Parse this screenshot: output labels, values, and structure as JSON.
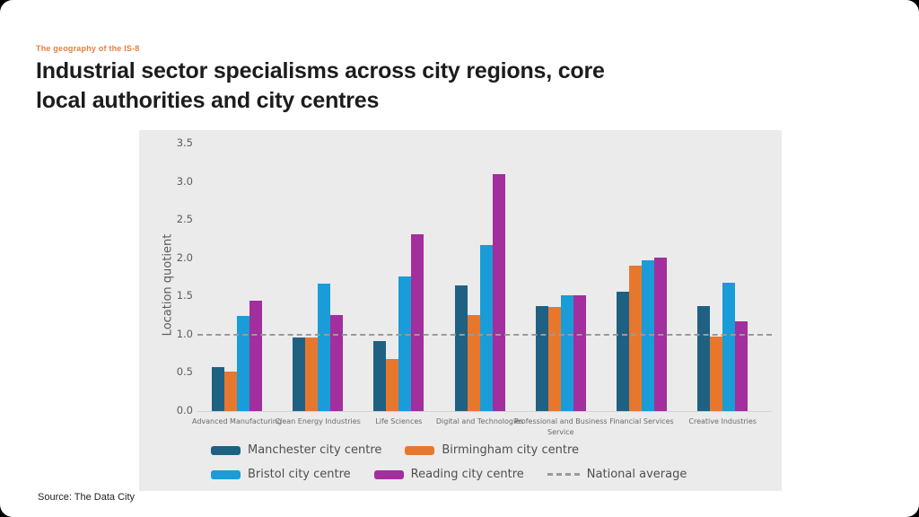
{
  "page": {
    "eyebrow": "The geography of the IS-8",
    "title_line1": "Industrial sector specialisms across city regions, core",
    "title_line2": "local authorities and city centres",
    "source": "Source: The Data City"
  },
  "colors": {
    "page_background": "#000000",
    "card_background": "#ffffff",
    "panel_background": "#ebebeb",
    "eyebrow_orange": "#e77e3c",
    "title_text": "#1c1c1c",
    "axis_text": "#5c5c5c",
    "category_text": "#6b6b6b",
    "legend_text": "#4f4f4f",
    "reference_line": "#9a9a9a",
    "baseline": "#d2d2d2"
  },
  "chart_data": {
    "type": "bar",
    "title": "Industrial sector specialisms across city regions, core local authorities and city centres",
    "xlabel": "",
    "ylabel": "Location quotient",
    "ylim": [
      0,
      3.5
    ],
    "yticks": [
      3.5,
      3.0,
      2.5,
      2.0,
      1.5,
      1.0,
      0.5,
      0.0
    ],
    "grid": false,
    "legend_position": "bottom",
    "categories": [
      "Advanced Manufacturing",
      "Clean Energy Industries",
      "Life Sciences",
      "Digital and Technologies",
      "Professional and Business Service",
      "Financial Services",
      "Creative Industries"
    ],
    "series": [
      {
        "name": "Manchester city centre",
        "color": "#1f6183",
        "values": [
          0.57,
          0.96,
          0.92,
          1.64,
          1.38,
          1.56,
          1.38
        ]
      },
      {
        "name": "Birmingham city centre",
        "color": "#e8772e",
        "values": [
          0.52,
          0.96,
          0.68,
          1.26,
          1.36,
          1.9,
          0.97
        ]
      },
      {
        "name": "Bristol city centre",
        "color": "#199cd8",
        "values": [
          1.25,
          1.67,
          1.76,
          2.17,
          1.52,
          1.97,
          1.68
        ]
      },
      {
        "name": "Reading city centre",
        "color": "#a32e9d",
        "values": [
          1.44,
          1.26,
          2.31,
          3.1,
          1.51,
          2.01,
          1.18
        ]
      }
    ],
    "reference_line": {
      "label": "National average",
      "value": 1.0,
      "style": "dashed",
      "color": "#9a9a9a"
    }
  }
}
